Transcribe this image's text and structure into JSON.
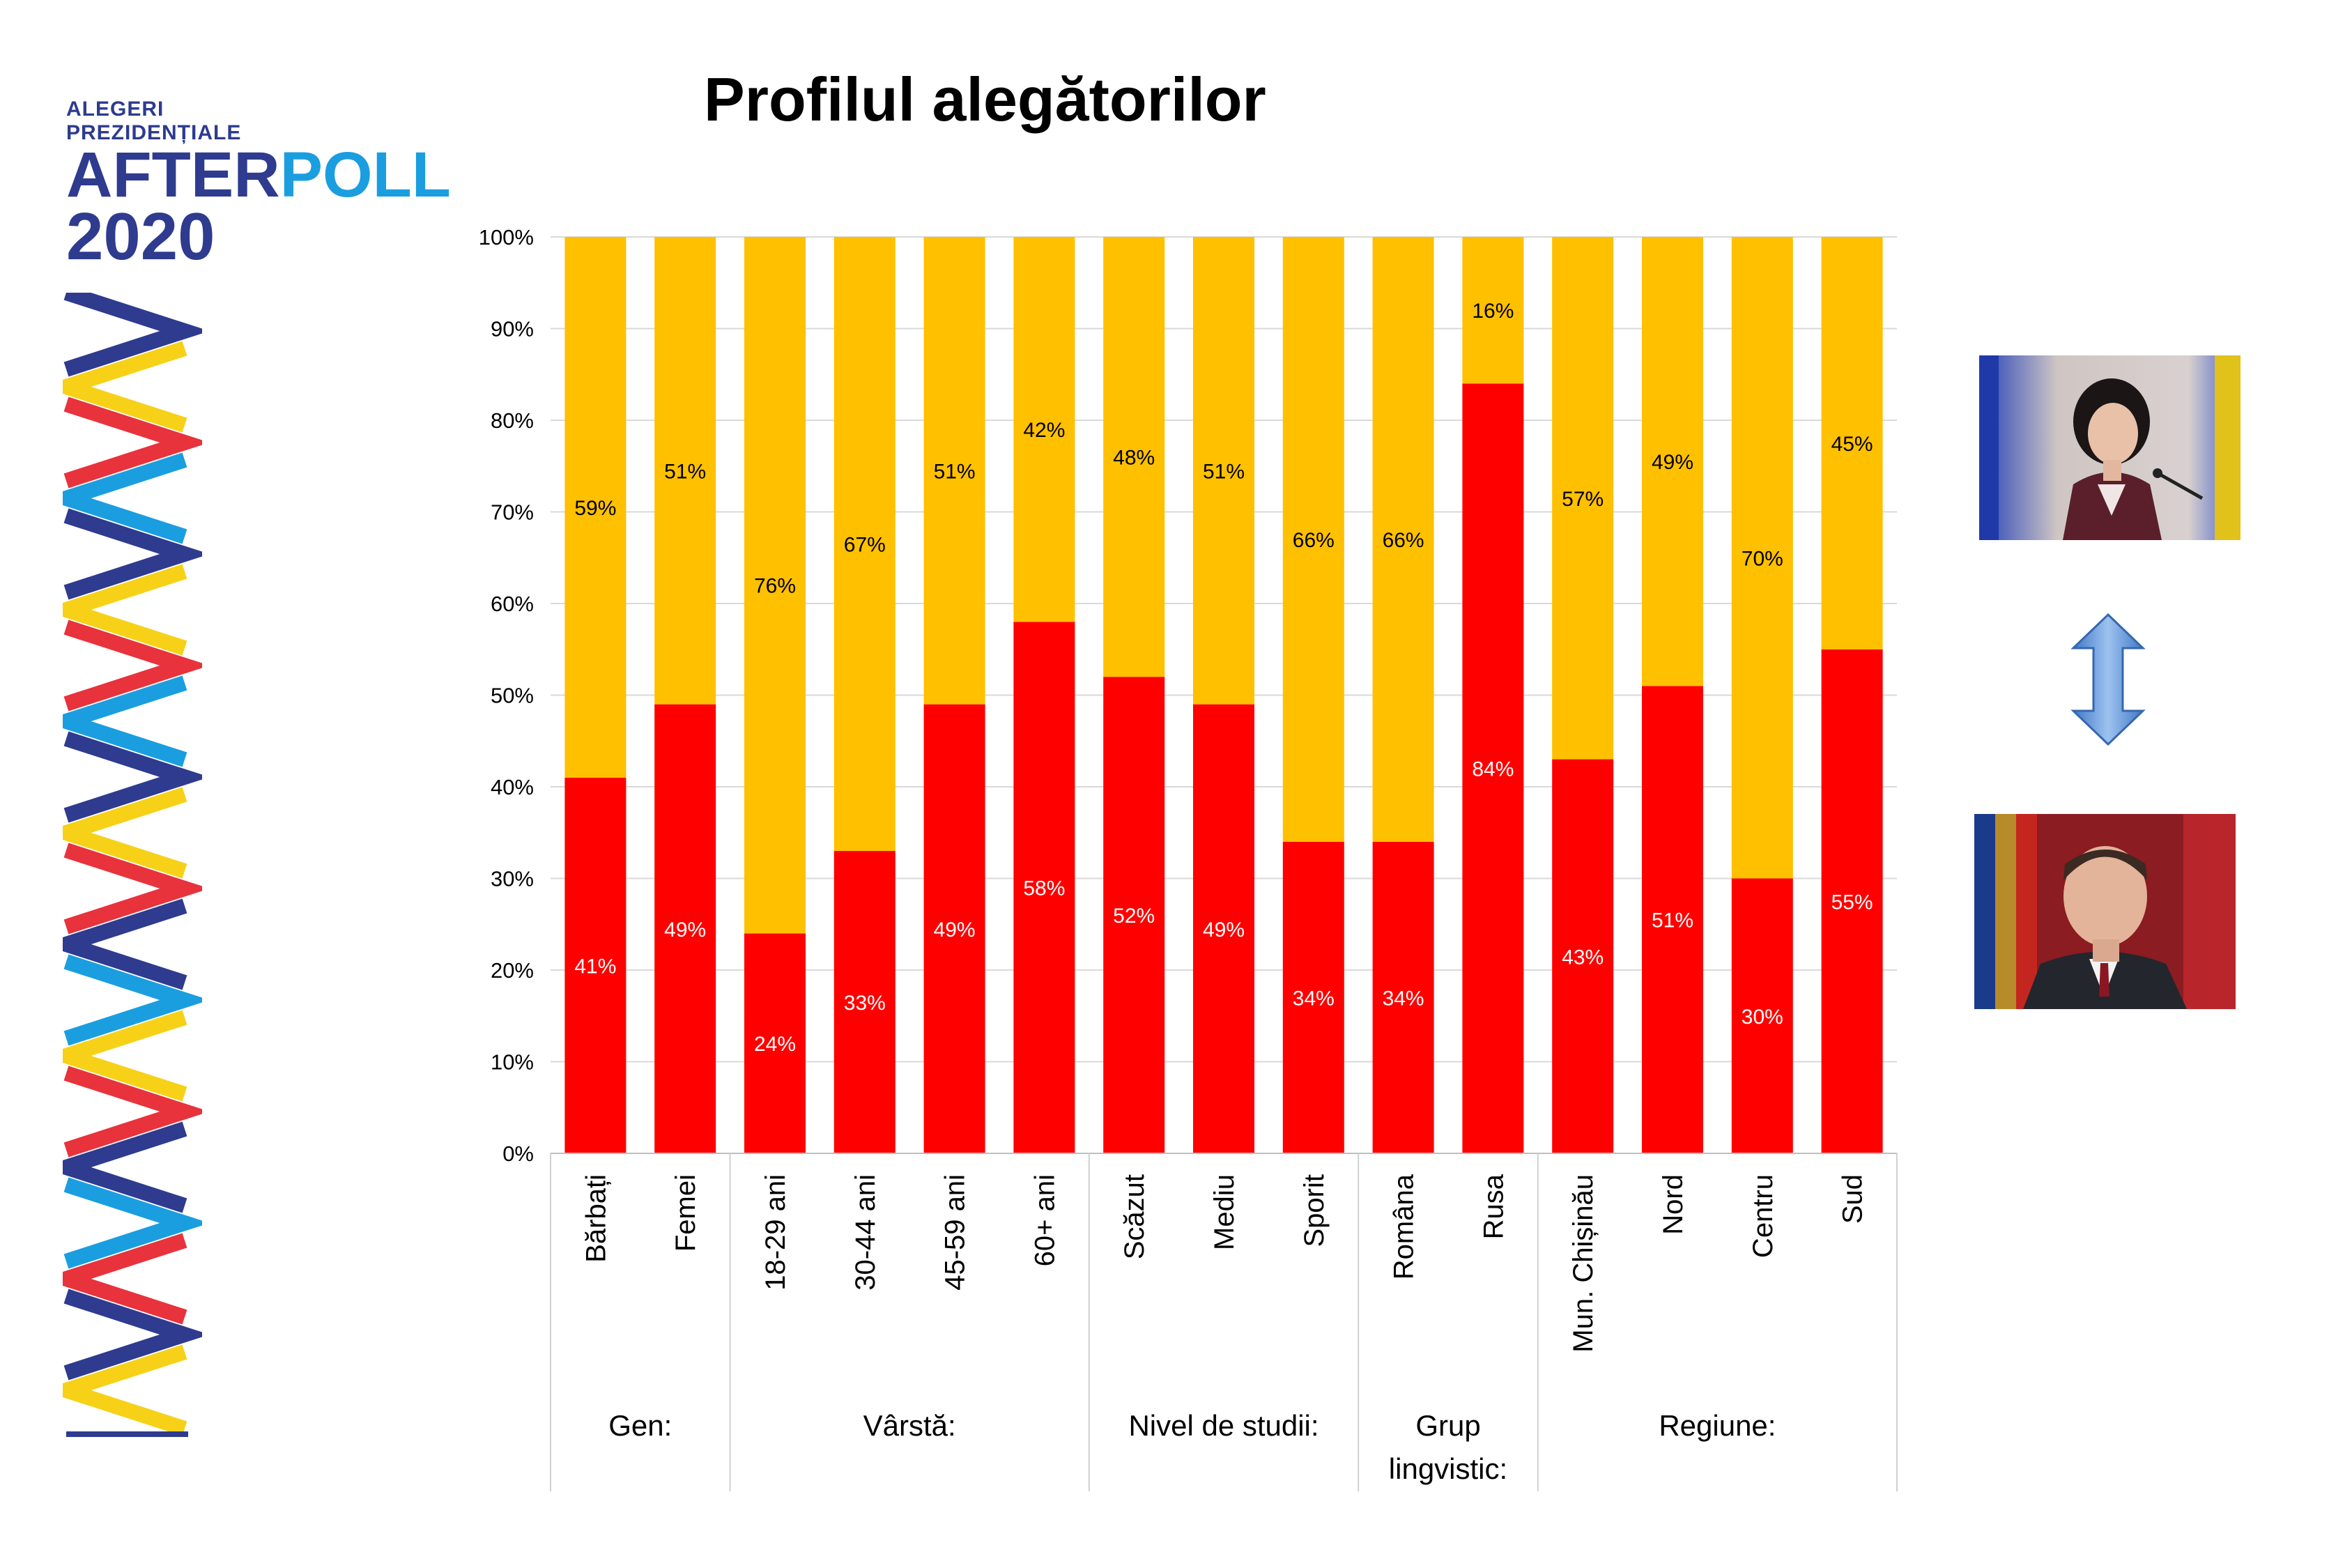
{
  "title": "Profilul alegătorilor",
  "logo": {
    "line1": "ALEGERI",
    "line2": "PREZIDENȚIALE",
    "after": "AFTER",
    "poll": "POLL",
    "year": "2020"
  },
  "icons": {
    "arrow": "double-vertical-arrow-icon",
    "photo_top": "candidate-photo-woman",
    "photo_bottom": "candidate-photo-man"
  },
  "colors": {
    "series_bottom": "#ff0000",
    "series_top": "#ffc000",
    "logo_blue": "#2e3b8f",
    "logo_light_blue": "#1a9ee0",
    "logo_red": "#e8323c",
    "logo_yellow": "#f7d117"
  },
  "chart_data": {
    "type": "bar",
    "stacked": true,
    "percent": true,
    "categories": [
      "Bărbați",
      "Femei",
      "18-29 ani",
      "30-44 ani",
      "45-59 ani",
      "60+ ani",
      "Scăzut",
      "Mediu",
      "Sporit",
      "Româna",
      "Rusa",
      "Mun. Chișinău",
      "Nord",
      "Centru",
      "Sud"
    ],
    "groups": [
      {
        "label": "Gen:",
        "count": 2
      },
      {
        "label": "Vârstă:",
        "count": 4
      },
      {
        "label": "Nivel de studii:",
        "count": 3
      },
      {
        "label": "Grup lingvistic:",
        "count": 2
      },
      {
        "label": "Regiune:",
        "count": 4
      }
    ],
    "series": [
      {
        "color": "#ff0000",
        "values": [
          41,
          49,
          24,
          33,
          49,
          58,
          52,
          49,
          34,
          34,
          84,
          43,
          51,
          30,
          55
        ],
        "labels": [
          "41%",
          "49%",
          "24%",
          "33%",
          "49%",
          "58%",
          "52%",
          "49%",
          "34%",
          "34%",
          "84%",
          "43%",
          "51%",
          "30%",
          "55%"
        ]
      },
      {
        "color": "#ffc000",
        "values": [
          59,
          51,
          76,
          67,
          51,
          42,
          48,
          51,
          66,
          66,
          16,
          57,
          49,
          70,
          45
        ],
        "labels": [
          "59%",
          "51%",
          "76%",
          "67%",
          "51%",
          "42%",
          "48%",
          "51%",
          "66%",
          "66%",
          "16%",
          "57%",
          "49%",
          "70%",
          "45%"
        ]
      }
    ],
    "yticks": [
      "0%",
      "10%",
      "20%",
      "30%",
      "40%",
      "50%",
      "60%",
      "70%",
      "80%",
      "90%",
      "100%"
    ],
    "ylim": [
      0,
      100
    ],
    "grid": true
  }
}
